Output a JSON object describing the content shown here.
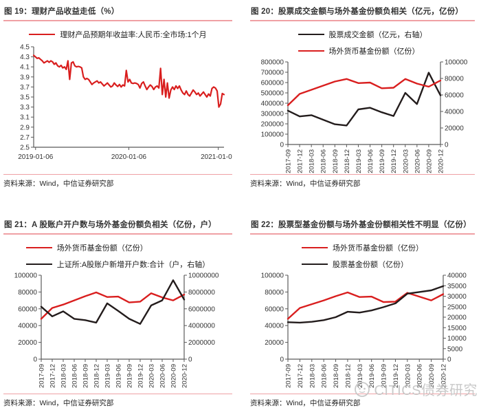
{
  "colors": {
    "accent_line": "#efa0a4",
    "red_series": "#d91e1e",
    "black_series": "#231c1c",
    "axis": "#595959",
    "tick_text": "#333333",
    "watermark": "#c9c9c9"
  },
  "watermark": {
    "text": "CITICS债券研究"
  },
  "chart_data": [
    {
      "type": "line",
      "title": "图 19：理财产品收益走低（%）",
      "source": "资料来源：Wind，中信证券研究部",
      "y_left": {
        "ticks": [
          "2.5",
          "2.7",
          "2.9",
          "3.1",
          "3.3",
          "3.5",
          "3.7",
          "3.9",
          "4.1",
          "4.3",
          "4.5"
        ]
      },
      "x_axis": {
        "labels": [
          "2019-01-06",
          "2020-01-06",
          "2021-01-06"
        ],
        "positions": [
          0.01,
          0.5,
          0.97
        ],
        "rotate": false
      },
      "series": [
        {
          "name": "理财产品预期年收益率:人民币:全市场:1个月",
          "color": "red",
          "axis": "left",
          "values": [
            4.33,
            4.3,
            4.27,
            4.28,
            4.25,
            4.22,
            4.18,
            4.2,
            4.22,
            4.19,
            4.22,
            4.2,
            4.15,
            4.18,
            4.12,
            4.1,
            4.13,
            4.08,
            4.1,
            4.05,
            4.22,
            3.85,
            4.18,
            4.2,
            4.12,
            4.1,
            4.11,
            4.1,
            4.08,
            3.9,
            3.85,
            3.87,
            3.85,
            3.8,
            3.75,
            3.78,
            3.8,
            3.82,
            3.78,
            3.8,
            3.76,
            3.72,
            3.75,
            3.78,
            3.74,
            3.7,
            3.72,
            3.78,
            3.74,
            3.71,
            3.75,
            3.7,
            3.74,
            3.72,
            4.03,
            3.8,
            3.85,
            3.78,
            3.77,
            3.78,
            3.77,
            3.75,
            3.68,
            3.77,
            3.8,
            3.72,
            3.65,
            3.7,
            3.74,
            3.71,
            3.65,
            3.7,
            3.72,
            3.68,
            4.07,
            3.55,
            3.85,
            3.5,
            3.78,
            3.48,
            3.64,
            3.7,
            3.65,
            3.72,
            3.67,
            3.72,
            3.64,
            3.58,
            3.55,
            3.62,
            3.55,
            3.52,
            3.58,
            3.64,
            3.6,
            3.55,
            3.58,
            3.52,
            3.56,
            3.6,
            3.55,
            3.5,
            3.56,
            3.52,
            3.67,
            3.7,
            3.68,
            3.62,
            3.3,
            3.36,
            3.57,
            3.55
          ]
        }
      ]
    },
    {
      "type": "line",
      "title": "图 20：股票成交金额与场外基金份额负相关（亿元，亿份）",
      "source": "资料来源：Wind，中信证券研究部",
      "y_left": {
        "ticks": [
          "0",
          "100000",
          "200000",
          "300000",
          "400000",
          "500000",
          "600000",
          "700000",
          "800000"
        ]
      },
      "y_right": {
        "ticks": [
          "0",
          "20000",
          "40000",
          "60000",
          "80000",
          "100000"
        ]
      },
      "x_axis": {
        "labels": [
          "2017-09",
          "2017-12",
          "2018-03",
          "2018-06",
          "2018-09",
          "2018-12",
          "2019-03",
          "2019-06",
          "2019-09",
          "2019-12",
          "2020-03",
          "2020-06",
          "2020-09",
          "2020-12"
        ],
        "rotate": true
      },
      "series": [
        {
          "name": "股票成交金额（亿元，右轴）",
          "color": "black",
          "axis": "right",
          "values": [
            41000,
            34000,
            35500,
            30000,
            24500,
            23000,
            42500,
            44500,
            39000,
            34500,
            62500,
            49000,
            87000,
            59500
          ]
        },
        {
          "name": "场外货币基金份额（亿份）",
          "color": "red",
          "axis": "left",
          "values": [
            380000,
            490000,
            530000,
            570000,
            610000,
            635000,
            595000,
            600000,
            545000,
            550000,
            635000,
            590000,
            560000,
            620000
          ]
        }
      ]
    },
    {
      "type": "line",
      "title": "图 21：A 股账户开户数与场外基金份额负相关（亿份，户）",
      "source": "资料来源：Wind，中信证券研究部",
      "y_left": {
        "ticks": [
          "0",
          "20000",
          "40000",
          "60000",
          "80000",
          "100000"
        ]
      },
      "y_right": {
        "ticks": [
          "0",
          "2000000",
          "4000000",
          "6000000",
          "8000000",
          "10000000"
        ]
      },
      "x_axis": {
        "labels": [
          "2017-09",
          "2017-12",
          "2018-03",
          "2018-06",
          "2018-09",
          "2018-12",
          "2019-03",
          "2019-06",
          "2019-09",
          "2019-12",
          "2020-03",
          "2020-06",
          "2020-09",
          "2020-12"
        ],
        "rotate": true
      },
      "series": [
        {
          "name": "场外货币基金份额（亿份）",
          "color": "red",
          "axis": "left",
          "values": [
            48000,
            61000,
            65000,
            70000,
            75000,
            79500,
            74000,
            74500,
            67500,
            68500,
            78500,
            73500,
            70000,
            77000
          ]
        },
        {
          "name": "上证所:A股账户新增开户数:合计（户，右轴）",
          "color": "black",
          "axis": "right",
          "values": [
            6250000,
            5100000,
            5700000,
            4800000,
            4650000,
            4350000,
            6650000,
            5750000,
            4800000,
            4200000,
            6400000,
            7000000,
            9400000,
            7100000
          ]
        }
      ]
    },
    {
      "type": "line",
      "title": "图 22：股票型基金份额与场外基金份额相关性不明显（亿份）",
      "source": "资料来源：Wind，中信证券研究部",
      "y_left": {
        "ticks": [
          "0",
          "20000",
          "40000",
          "60000",
          "80000",
          "100000"
        ]
      },
      "y_right": {
        "ticks": [
          "0",
          "5000",
          "10000",
          "15000",
          "20000",
          "25000",
          "30000",
          "35000",
          "40000"
        ]
      },
      "x_axis": {
        "labels": [
          "2017-09",
          "2017-12",
          "2018-03",
          "2018-06",
          "2018-09",
          "2018-12",
          "2019-03",
          "2019-06",
          "2019-09",
          "2019-12",
          "2020-03",
          "2020-06",
          "2020-09",
          "2020-12"
        ],
        "rotate": true
      },
      "series": [
        {
          "name": "场外货币基金份额（亿份）",
          "color": "red",
          "axis": "left",
          "values": [
            48000,
            61000,
            65500,
            70000,
            75000,
            79500,
            74000,
            74500,
            68000,
            68500,
            79000,
            74500,
            70000,
            77500
          ]
        },
        {
          "name": "股票基金份额（亿份）",
          "color": "black",
          "axis": "right",
          "values": [
            17600,
            17400,
            17800,
            18600,
            20000,
            22600,
            22200,
            23200,
            24800,
            26600,
            31200,
            32000,
            32800,
            34800
          ]
        }
      ]
    }
  ]
}
